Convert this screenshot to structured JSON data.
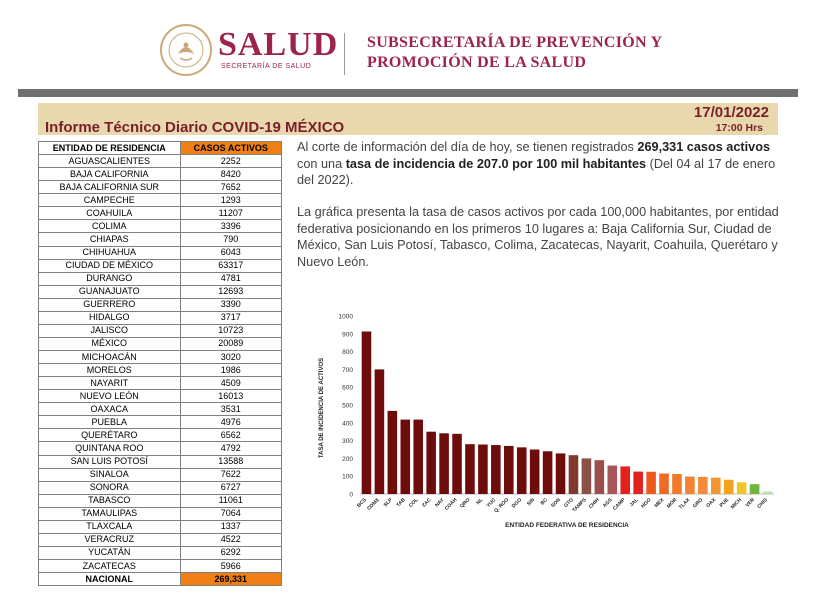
{
  "header": {
    "brand": "SALUD",
    "brand_sub": "SECRETARÍA DE SALUD",
    "subsecretaria_line1": "SUBSECRETARÍA DE PREVENCIÓN Y",
    "subsecretaria_line2": "PROMOCIÓN DE LA SALUD",
    "seal_icon": "eagle-seal-icon"
  },
  "report": {
    "title": "Informe Técnico Diario COVID-19 MÉXICO",
    "date": "17/01/2022",
    "time": "17:00 Hrs"
  },
  "colors": {
    "brand": "#9d2449",
    "band": "#e9d7ad",
    "orange": "#f07f16",
    "title": "#7a1f2a"
  },
  "table": {
    "headers": [
      "ENTIDAD DE RESIDENCIA",
      "CASOS ACTIVOS"
    ],
    "rows": [
      [
        "AGUASCALIENTES",
        "2252"
      ],
      [
        "BAJA CALIFORNIA",
        "8420"
      ],
      [
        "BAJA CALIFORNIA SUR",
        "7652"
      ],
      [
        "CAMPECHE",
        "1293"
      ],
      [
        "COAHUILA",
        "11207"
      ],
      [
        "COLIMA",
        "3396"
      ],
      [
        "CHIAPAS",
        "790"
      ],
      [
        "CHIHUAHUA",
        "6043"
      ],
      [
        "CIUDAD DE MÉXICO",
        "63317"
      ],
      [
        "DURANGO",
        "4781"
      ],
      [
        "GUANAJUATO",
        "12693"
      ],
      [
        "GUERRERO",
        "3390"
      ],
      [
        "HIDALGO",
        "3717"
      ],
      [
        "JALISCO",
        "10723"
      ],
      [
        "MÉXICO",
        "20089"
      ],
      [
        "MICHOACÁN",
        "3020"
      ],
      [
        "MORELOS",
        "1986"
      ],
      [
        "NAYARIT",
        "4509"
      ],
      [
        "NUEVO LEÓN",
        "16013"
      ],
      [
        "OAXACA",
        "3531"
      ],
      [
        "PUEBLA",
        "4976"
      ],
      [
        "QUERÉTARO",
        "6562"
      ],
      [
        "QUINTANA ROO",
        "4792"
      ],
      [
        "SAN LUIS POTOSÍ",
        "13588"
      ],
      [
        "SINALOA",
        "7622"
      ],
      [
        "SONORA",
        "6727"
      ],
      [
        "TABASCO",
        "11061"
      ],
      [
        "TAMAULIPAS",
        "7064"
      ],
      [
        "TLAXCALA",
        "1337"
      ],
      [
        "VERACRUZ",
        "4522"
      ],
      [
        "YUCATÁN",
        "6292"
      ],
      [
        "ZACATECAS",
        "5966"
      ]
    ],
    "total_label": "NACIONAL",
    "total_value": "269,331"
  },
  "paragraph1": {
    "t1": "Al corte de información del día de hoy, se tienen registrados ",
    "b1": "269,331 casos activos",
    "t2": " con una ",
    "b2": "tasa de incidencia de 207.0 por 100 mil habitantes",
    "t3": " (Del 04 al 17 de enero del 2022)."
  },
  "paragraph2": "La gráfica presenta la tasa de casos activos por cada 100,000 habitantes, por entidad federativa posicionando en los primeros 10 lugares a: Baja California Sur, Ciudad de México, San Luis Potosí, Tabasco, Colima, Zacatecas, Nayarit, Coahuila, Querétaro y Nuevo León.",
  "chart_data": {
    "type": "bar",
    "categories": [
      "BCS",
      "CDMX",
      "SLP",
      "TAB",
      "COL",
      "ZAC",
      "NAY",
      "COAH",
      "QRO",
      "NL",
      "YUC",
      "Q. ROO",
      "DGO",
      "SIN",
      "BC",
      "SON",
      "GTO",
      "TAMPS",
      "CHIH",
      "AGS",
      "CAMP",
      "JAL",
      "HGO",
      "MEX",
      "MOR",
      "TLAX",
      "GRO",
      "OAX",
      "PUE",
      "MICH",
      "VER",
      "CHIS"
    ],
    "values": [
      913,
      700,
      467,
      418,
      418,
      350,
      341,
      338,
      280,
      278,
      275,
      270,
      262,
      250,
      240,
      228,
      218,
      200,
      190,
      160,
      155,
      126,
      125,
      115,
      112,
      98,
      96,
      92,
      80,
      66,
      55,
      14
    ],
    "colors": [
      "#6e0c0c",
      "#6e0c0c",
      "#6e0c0c",
      "#6e0c0c",
      "#6e0c0c",
      "#6e0c0c",
      "#6e0c0c",
      "#6e0c0c",
      "#6e0c0c",
      "#6e0c0c",
      "#6e0c0c",
      "#6e0c0c",
      "#6e0c0c",
      "#6e0c0c",
      "#6e0c0c",
      "#6e0c0c",
      "#7f3a2c",
      "#8c5146",
      "#9c4d4d",
      "#a8565a",
      "#e3221f",
      "#e3221f",
      "#ec5a1e",
      "#ef6a24",
      "#f07a2a",
      "#f48234",
      "#f38a3a",
      "#f5952f",
      "#f5a21f",
      "#f0c52a",
      "#6fb43c",
      "#b7e1a6"
    ],
    "ylabel": "TASA DE INCIDENCIA DE ACTIVOS",
    "xlabel": "ENTIDAD FEDERATIVA DE RESIDENCIA",
    "yticks": [
      0,
      100,
      200,
      300,
      400,
      500,
      600,
      700,
      800,
      900,
      1000
    ],
    "ylim": [
      0,
      1000
    ],
    "grid": false
  }
}
